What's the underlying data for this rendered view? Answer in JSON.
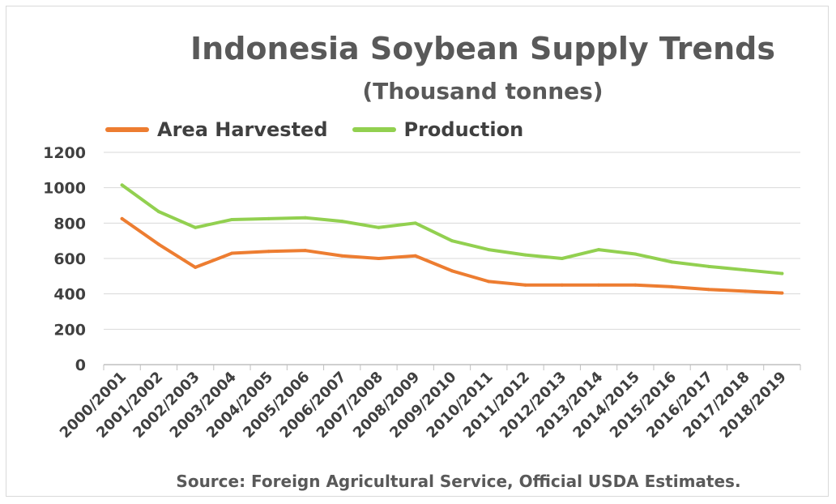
{
  "chart_data": {
    "type": "line",
    "title": "Indonesia Soybean Supply Trends",
    "subtitle": "(Thousand tonnes)",
    "source": "Source: Foreign Agricultural Service, Official USDA Estimates.",
    "categories": [
      "2000/2001",
      "2001/2002",
      "2002/2003",
      "2003/2004",
      "2004/2005",
      "2005/2006",
      "2006/2007",
      "2007/2008",
      "2008/2009",
      "2009/2010",
      "2010/2011",
      "2011/2012",
      "2012/2013",
      "2013/2014",
      "2014/2015",
      "2015/2016",
      "2016/2017",
      "2017/2018",
      "2018/2019"
    ],
    "series": [
      {
        "name": "Area Harvested",
        "color": "#ed7d31",
        "values": [
          825,
          680,
          550,
          630,
          640,
          645,
          615,
          600,
          615,
          530,
          470,
          450,
          450,
          450,
          450,
          440,
          425,
          415,
          405
        ]
      },
      {
        "name": "Production",
        "color": "#92d050",
        "values": [
          1015,
          865,
          775,
          820,
          825,
          830,
          810,
          775,
          800,
          700,
          650,
          620,
          600,
          650,
          625,
          580,
          555,
          535,
          515
        ]
      }
    ],
    "ylim": [
      0,
      1200
    ],
    "yticks": [
      0,
      200,
      400,
      600,
      800,
      1000,
      1200
    ],
    "grid": true,
    "legend_position": "top-left"
  }
}
